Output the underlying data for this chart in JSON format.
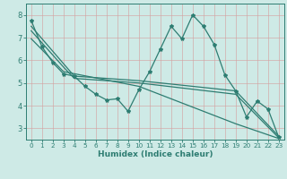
{
  "line1": {
    "x": [
      0,
      1,
      2,
      3,
      4,
      5,
      6,
      7,
      8,
      9,
      10,
      11,
      12,
      13,
      14,
      15,
      16,
      17,
      18,
      19,
      20,
      21,
      22,
      23
    ],
    "y": [
      7.75,
      6.6,
      5.9,
      5.4,
      5.3,
      4.85,
      4.5,
      4.25,
      4.3,
      3.75,
      4.7,
      5.5,
      6.5,
      7.5,
      6.95,
      8.0,
      7.5,
      6.7,
      5.35,
      4.65,
      3.5,
      4.2,
      3.85,
      2.6
    ]
  },
  "line2": {
    "x": [
      0,
      3,
      4,
      10,
      19,
      23
    ],
    "y": [
      7.5,
      5.85,
      5.3,
      5.1,
      4.65,
      2.65
    ]
  },
  "line3": {
    "x": [
      0,
      3,
      4,
      10,
      19,
      23
    ],
    "y": [
      7.3,
      5.7,
      5.2,
      5.0,
      4.5,
      2.58
    ]
  },
  "line4": {
    "x": [
      0,
      3,
      10,
      19,
      23
    ],
    "y": [
      6.95,
      5.5,
      4.85,
      3.2,
      2.55
    ]
  },
  "color": "#2e7d72",
  "bg_color": "#ceeae6",
  "grid_color_major": "#b0cec9",
  "grid_color_minor": "#c8e3de",
  "xlabel": "Humidex (Indice chaleur)",
  "xlim": [
    0,
    23
  ],
  "ylim": [
    2.5,
    8.5
  ],
  "xticks": [
    0,
    1,
    2,
    3,
    4,
    5,
    6,
    7,
    8,
    9,
    10,
    11,
    12,
    13,
    14,
    15,
    16,
    17,
    18,
    19,
    20,
    21,
    22,
    23
  ],
  "yticks": [
    3,
    4,
    5,
    6,
    7,
    8
  ]
}
